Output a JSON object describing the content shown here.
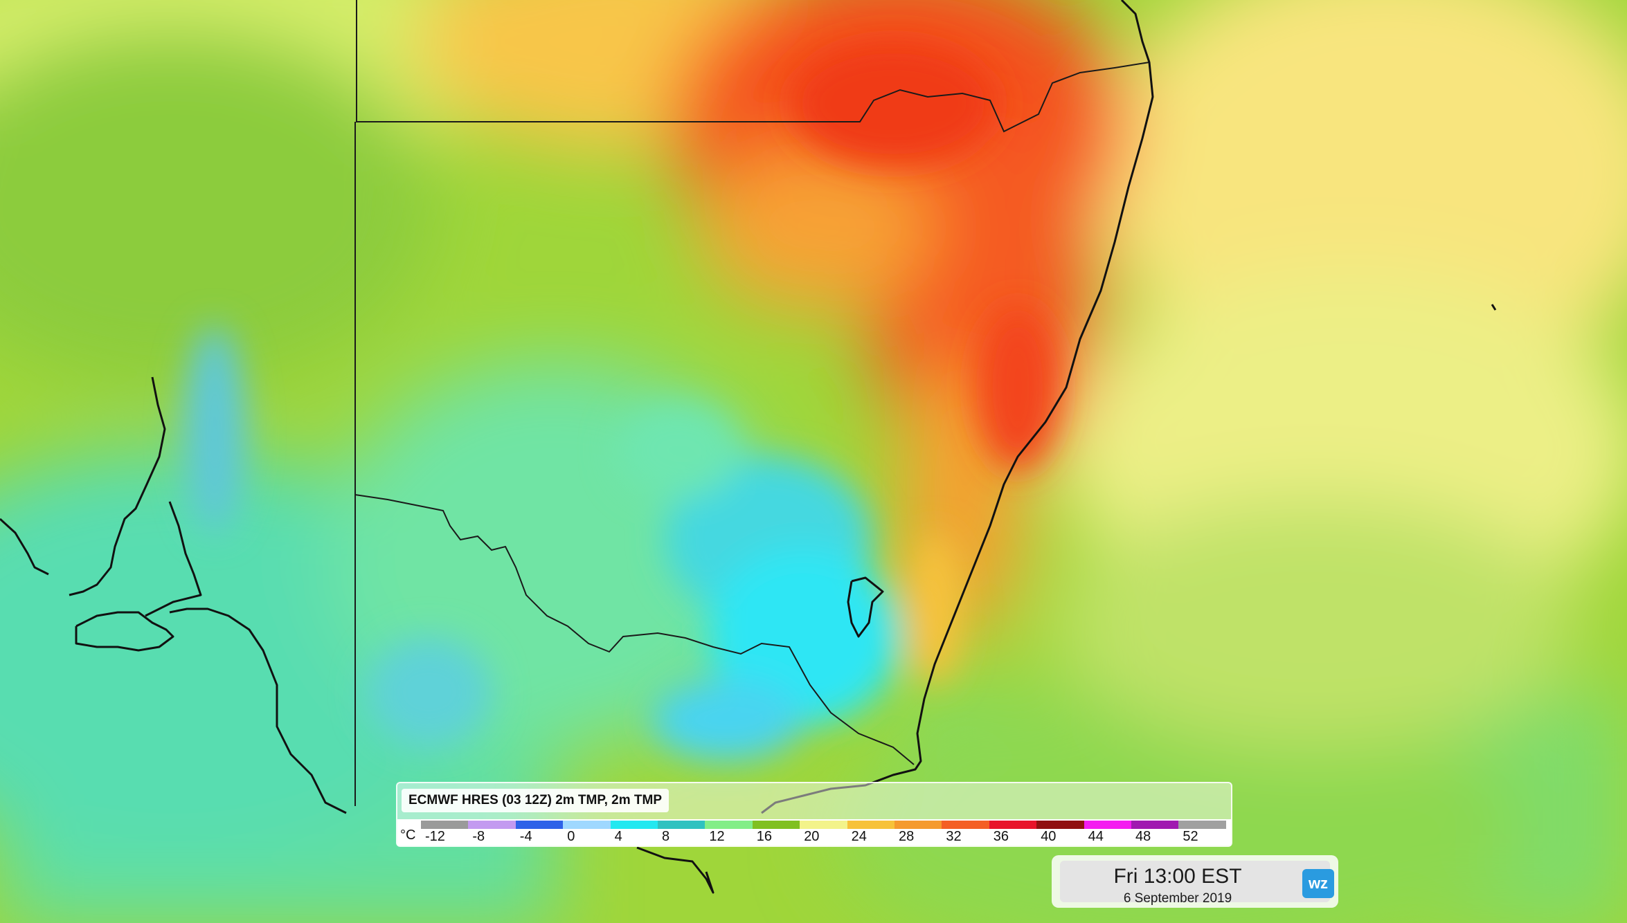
{
  "legend": {
    "title": "ECMWF HRES (03 12Z) 2m TMP, 2m TMP",
    "unit": "°C",
    "ticks": [
      "-12",
      "-8",
      "-4",
      "0",
      "4",
      "8",
      "12",
      "16",
      "20",
      "24",
      "28",
      "32",
      "36",
      "40",
      "44",
      "48",
      "52"
    ],
    "swatch_colors": [
      "#9a9a9a",
      "#c39af0",
      "#2e62e8",
      "#9fd8ff",
      "#22e8f0",
      "#2fc2c0",
      "#83ee88",
      "#80c020",
      "#f3f38a",
      "#f7c23a",
      "#f59a2e",
      "#f45f24",
      "#e8142a",
      "#901010",
      "#f41cf0",
      "#a01ab0",
      "#a0a0a0"
    ]
  },
  "timestamp": {
    "time": "Fri 13:00 EST",
    "date": "6 September 2019"
  },
  "logo": {
    "text": "wz",
    "color": "#2a9be0"
  },
  "map": {
    "variable": "2m temperature",
    "colors": {
      "hot": "#f44a1a",
      "warm": "#fcc24a",
      "mild": "#9fce33",
      "cool": "#7fe6a0",
      "cold": "#33d8f0",
      "coastline": "#111111"
    }
  }
}
